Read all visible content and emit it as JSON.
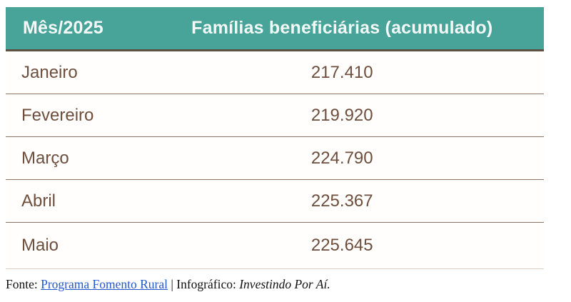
{
  "chart_data": {
    "type": "table",
    "title": "",
    "columns": [
      "Mês/2025",
      "Famílias beneficiárias (acumulado)"
    ],
    "rows": [
      {
        "month": "Janeiro",
        "families_accumulated": "217.410",
        "value_numeric": 217410
      },
      {
        "month": "Fevereiro",
        "families_accumulated": "219.920",
        "value_numeric": 219920
      },
      {
        "month": "Março",
        "families_accumulated": "224.790",
        "value_numeric": 224790
      },
      {
        "month": "Abril",
        "families_accumulated": "225.367",
        "value_numeric": 225367
      },
      {
        "month": "Maio",
        "families_accumulated": "225.645",
        "value_numeric": 225645
      }
    ],
    "layout_hints": {
      "header_background": "#48a499",
      "header_text_color": "#f2f8f6",
      "body_text_color": "#6e4e3c",
      "row_separator_color": "#8d7463",
      "header_underline_color": "#5b5243",
      "value_alignment": "center",
      "number_format": "pt-BR thousands dot"
    }
  },
  "footer": {
    "source_label": "Fonte:",
    "source_link": "Programa Fomento Rural",
    "separator": "|",
    "credit_label": "Infográfico:",
    "credit_name": "Investindo Por Aí.",
    "link_color": "#2457cd"
  }
}
